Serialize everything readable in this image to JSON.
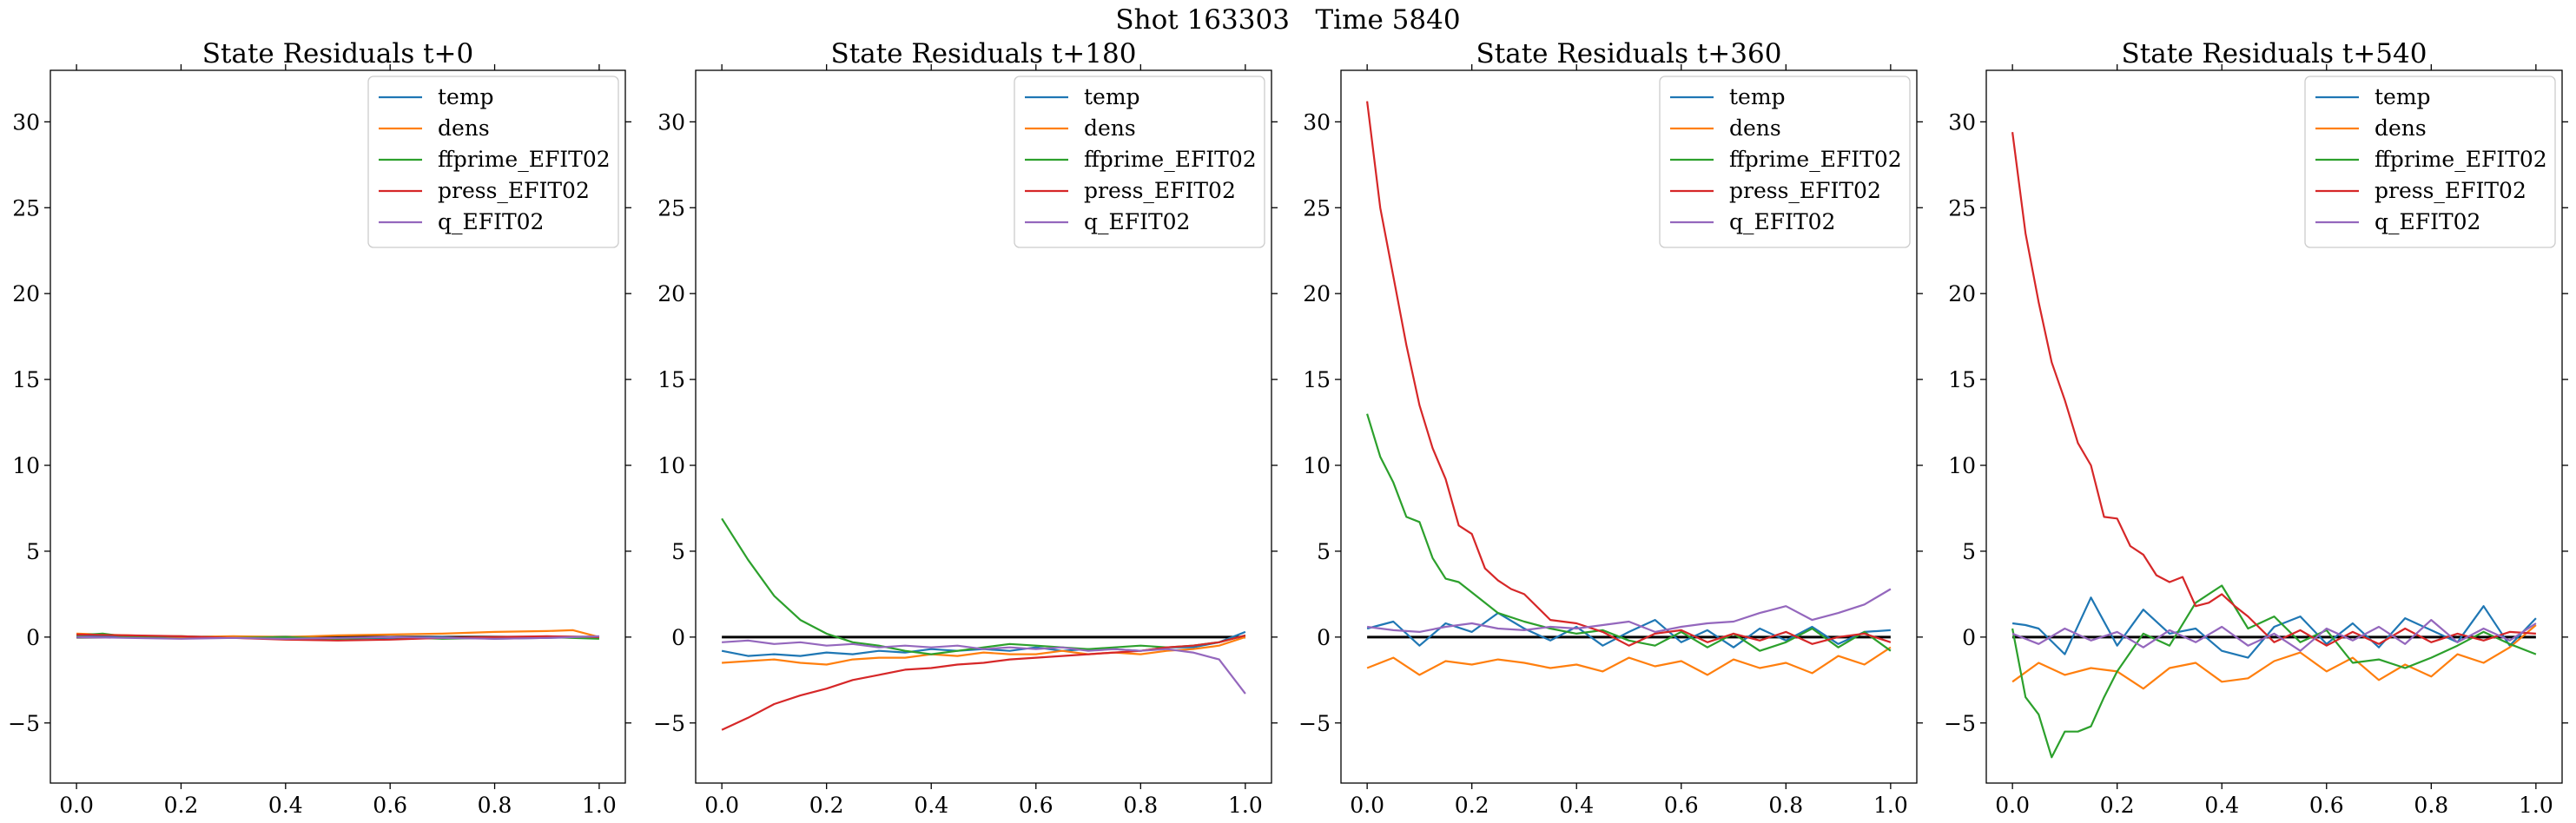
{
  "figure": {
    "suptitle": "Shot 163303   Time 5840"
  },
  "chart_data": [
    {
      "type": "line",
      "title": "State Residuals t+0",
      "xlim": [
        -0.05,
        1.05
      ],
      "ylim": [
        -8.5,
        33
      ],
      "xticks": [
        "0.0",
        "0.2",
        "0.4",
        "0.6",
        "0.8",
        "1.0"
      ],
      "yticks": [
        "−5",
        "0",
        "5",
        "10",
        "15",
        "20",
        "25",
        "30"
      ],
      "grid": false,
      "legend_position": "top-right",
      "reference_line_y": 0,
      "series": [
        {
          "name": "temp",
          "color": "#1f77b4",
          "x": [
            0.0,
            0.1,
            0.2,
            0.3,
            0.4,
            0.5,
            0.6,
            0.7,
            0.8,
            0.9,
            1.0
          ],
          "y": [
            0.1,
            0.05,
            0.0,
            0.0,
            -0.05,
            -0.1,
            -0.05,
            0.0,
            -0.1,
            -0.05,
            0.0
          ]
        },
        {
          "name": "dens",
          "color": "#ff7f0e",
          "x": [
            0.0,
            0.1,
            0.2,
            0.3,
            0.4,
            0.5,
            0.6,
            0.7,
            0.8,
            0.9,
            0.95,
            1.0
          ],
          "y": [
            0.2,
            0.1,
            0.0,
            0.05,
            0.0,
            0.1,
            0.15,
            0.2,
            0.3,
            0.35,
            0.4,
            0.0
          ]
        },
        {
          "name": "ffprime_EFIT02",
          "color": "#2ca02c",
          "x": [
            0.0,
            0.05,
            0.1,
            0.2,
            0.3,
            0.4,
            0.5,
            0.6,
            0.7,
            0.8,
            0.9,
            1.0
          ],
          "y": [
            0.1,
            0.2,
            0.0,
            0.05,
            -0.05,
            0.0,
            -0.1,
            0.0,
            -0.1,
            -0.05,
            0.0,
            -0.1
          ]
        },
        {
          "name": "press_EFIT02",
          "color": "#d62728",
          "x": [
            0.0,
            0.1,
            0.2,
            0.3,
            0.4,
            0.5,
            0.6,
            0.7,
            0.8,
            0.9,
            1.0
          ],
          "y": [
            0.15,
            0.1,
            0.05,
            -0.05,
            -0.15,
            -0.2,
            -0.15,
            -0.05,
            0.0,
            0.05,
            0.0
          ]
        },
        {
          "name": "q_EFIT02",
          "color": "#9467bd",
          "x": [
            0.0,
            0.1,
            0.2,
            0.3,
            0.4,
            0.5,
            0.6,
            0.7,
            0.8,
            0.9,
            1.0
          ],
          "y": [
            0.0,
            -0.05,
            -0.1,
            -0.05,
            -0.1,
            -0.05,
            0.0,
            -0.05,
            -0.1,
            -0.05,
            0.05
          ]
        }
      ]
    },
    {
      "type": "line",
      "title": "State Residuals t+180",
      "xlim": [
        -0.05,
        1.05
      ],
      "ylim": [
        -8.5,
        33
      ],
      "xticks": [
        "0.0",
        "0.2",
        "0.4",
        "0.6",
        "0.8",
        "1.0"
      ],
      "yticks": [
        "−5",
        "0",
        "5",
        "10",
        "15",
        "20",
        "25",
        "30"
      ],
      "grid": false,
      "legend_position": "top-right",
      "reference_line_y": 0,
      "series": [
        {
          "name": "temp",
          "color": "#1f77b4",
          "x": [
            0.0,
            0.05,
            0.1,
            0.15,
            0.2,
            0.25,
            0.3,
            0.35,
            0.4,
            0.45,
            0.5,
            0.55,
            0.6,
            0.65,
            0.7,
            0.75,
            0.8,
            0.85,
            0.9,
            0.95,
            1.0
          ],
          "y": [
            -0.8,
            -1.1,
            -1.0,
            -1.1,
            -0.9,
            -1.0,
            -0.8,
            -0.9,
            -0.7,
            -0.8,
            -0.7,
            -0.8,
            -0.6,
            -0.8,
            -0.7,
            -0.7,
            -0.8,
            -0.6,
            -0.6,
            -0.3,
            0.3
          ]
        },
        {
          "name": "dens",
          "color": "#ff7f0e",
          "x": [
            0.0,
            0.05,
            0.1,
            0.15,
            0.2,
            0.25,
            0.3,
            0.35,
            0.4,
            0.45,
            0.5,
            0.55,
            0.6,
            0.65,
            0.7,
            0.75,
            0.8,
            0.85,
            0.9,
            0.95,
            1.0
          ],
          "y": [
            -1.5,
            -1.4,
            -1.3,
            -1.5,
            -1.6,
            -1.3,
            -1.2,
            -1.2,
            -1.0,
            -1.1,
            -0.9,
            -1.0,
            -1.0,
            -0.8,
            -1.0,
            -0.9,
            -1.0,
            -0.8,
            -0.7,
            -0.5,
            0.0
          ]
        },
        {
          "name": "ffprime_EFIT02",
          "color": "#2ca02c",
          "x": [
            0.0,
            0.05,
            0.1,
            0.15,
            0.2,
            0.25,
            0.3,
            0.35,
            0.4,
            0.45,
            0.5,
            0.55,
            0.6,
            0.65,
            0.7,
            0.75,
            0.8,
            0.85,
            0.9,
            0.95,
            1.0
          ],
          "y": [
            6.9,
            4.5,
            2.4,
            1.0,
            0.2,
            -0.3,
            -0.5,
            -0.8,
            -1.0,
            -0.8,
            -0.6,
            -0.4,
            -0.5,
            -0.6,
            -0.7,
            -0.6,
            -0.5,
            -0.6,
            -0.5,
            -0.3,
            0.1
          ]
        },
        {
          "name": "press_EFIT02",
          "color": "#d62728",
          "x": [
            0.0,
            0.05,
            0.1,
            0.15,
            0.2,
            0.25,
            0.3,
            0.35,
            0.4,
            0.45,
            0.5,
            0.55,
            0.6,
            0.65,
            0.7,
            0.75,
            0.8,
            0.85,
            0.9,
            0.95,
            1.0
          ],
          "y": [
            -5.4,
            -4.7,
            -3.9,
            -3.4,
            -3.0,
            -2.5,
            -2.2,
            -1.9,
            -1.8,
            -1.6,
            -1.5,
            -1.3,
            -1.2,
            -1.1,
            -1.0,
            -0.9,
            -0.8,
            -0.6,
            -0.5,
            -0.3,
            0.1
          ]
        },
        {
          "name": "q_EFIT02",
          "color": "#9467bd",
          "x": [
            0.0,
            0.05,
            0.1,
            0.15,
            0.2,
            0.25,
            0.3,
            0.35,
            0.4,
            0.45,
            0.5,
            0.55,
            0.6,
            0.65,
            0.7,
            0.75,
            0.8,
            0.85,
            0.9,
            0.95,
            1.0
          ],
          "y": [
            -0.3,
            -0.2,
            -0.4,
            -0.3,
            -0.5,
            -0.4,
            -0.6,
            -0.5,
            -0.6,
            -0.5,
            -0.7,
            -0.6,
            -0.7,
            -0.6,
            -0.8,
            -0.7,
            -0.8,
            -0.7,
            -0.9,
            -1.3,
            -3.3
          ]
        }
      ]
    },
    {
      "type": "line",
      "title": "State Residuals t+360",
      "xlim": [
        -0.05,
        1.05
      ],
      "ylim": [
        -8.5,
        33
      ],
      "xticks": [
        "0.0",
        "0.2",
        "0.4",
        "0.6",
        "0.8",
        "1.0"
      ],
      "yticks": [
        "−5",
        "0",
        "5",
        "10",
        "15",
        "20",
        "25",
        "30"
      ],
      "grid": false,
      "legend_position": "top-right",
      "reference_line_y": 0,
      "series": [
        {
          "name": "temp",
          "color": "#1f77b4",
          "x": [
            0.0,
            0.05,
            0.1,
            0.15,
            0.2,
            0.25,
            0.3,
            0.35,
            0.4,
            0.45,
            0.5,
            0.55,
            0.6,
            0.65,
            0.7,
            0.75,
            0.8,
            0.85,
            0.9,
            0.95,
            1.0
          ],
          "y": [
            0.5,
            0.9,
            -0.5,
            0.8,
            0.3,
            1.4,
            0.5,
            -0.2,
            0.6,
            -0.5,
            0.3,
            1.0,
            -0.3,
            0.4,
            -0.6,
            0.5,
            -0.2,
            0.6,
            -0.4,
            0.3,
            0.4
          ]
        },
        {
          "name": "dens",
          "color": "#ff7f0e",
          "x": [
            0.0,
            0.05,
            0.1,
            0.15,
            0.2,
            0.25,
            0.3,
            0.35,
            0.4,
            0.45,
            0.5,
            0.55,
            0.6,
            0.65,
            0.7,
            0.75,
            0.8,
            0.85,
            0.9,
            0.95,
            1.0
          ],
          "y": [
            -1.8,
            -1.2,
            -2.2,
            -1.4,
            -1.6,
            -1.3,
            -1.5,
            -1.8,
            -1.6,
            -2.0,
            -1.2,
            -1.7,
            -1.4,
            -2.2,
            -1.3,
            -1.8,
            -1.5,
            -2.1,
            -1.1,
            -1.6,
            -0.6
          ]
        },
        {
          "name": "ffprime_EFIT02",
          "color": "#2ca02c",
          "x": [
            0.0,
            0.025,
            0.05,
            0.075,
            0.1,
            0.125,
            0.15,
            0.175,
            0.2,
            0.25,
            0.3,
            0.35,
            0.4,
            0.45,
            0.5,
            0.55,
            0.6,
            0.65,
            0.7,
            0.75,
            0.8,
            0.85,
            0.9,
            0.95,
            1.0
          ],
          "y": [
            13.0,
            10.5,
            9.0,
            7.0,
            6.7,
            4.6,
            3.4,
            3.2,
            2.6,
            1.4,
            0.9,
            0.5,
            0.2,
            0.4,
            -0.2,
            -0.5,
            0.3,
            -0.6,
            0.2,
            -0.8,
            -0.3,
            0.5,
            -0.6,
            0.3,
            -0.8
          ]
        },
        {
          "name": "press_EFIT02",
          "color": "#d62728",
          "x": [
            0.0,
            0.025,
            0.05,
            0.075,
            0.1,
            0.125,
            0.15,
            0.175,
            0.2,
            0.225,
            0.25,
            0.275,
            0.3,
            0.35,
            0.4,
            0.45,
            0.5,
            0.55,
            0.6,
            0.65,
            0.7,
            0.75,
            0.8,
            0.85,
            0.9,
            0.95,
            1.0
          ],
          "y": [
            31.2,
            25.0,
            21.0,
            17.0,
            13.5,
            11.0,
            9.2,
            6.5,
            6.0,
            4.0,
            3.3,
            2.8,
            2.5,
            1.0,
            0.8,
            0.3,
            -0.5,
            0.2,
            0.4,
            -0.3,
            0.2,
            -0.2,
            0.3,
            -0.4,
            0.0,
            0.2,
            -0.3
          ]
        },
        {
          "name": "q_EFIT02",
          "color": "#9467bd",
          "x": [
            0.0,
            0.05,
            0.1,
            0.15,
            0.2,
            0.25,
            0.3,
            0.35,
            0.4,
            0.45,
            0.5,
            0.55,
            0.6,
            0.65,
            0.7,
            0.75,
            0.8,
            0.85,
            0.9,
            0.95,
            1.0
          ],
          "y": [
            0.6,
            0.4,
            0.3,
            0.6,
            0.8,
            0.5,
            0.4,
            0.6,
            0.5,
            0.7,
            0.9,
            0.3,
            0.6,
            0.8,
            0.9,
            1.4,
            1.8,
            1.0,
            1.4,
            1.9,
            2.8
          ]
        }
      ]
    },
    {
      "type": "line",
      "title": "State Residuals t+540",
      "xlim": [
        -0.05,
        1.05
      ],
      "ylim": [
        -8.5,
        33
      ],
      "xticks": [
        "0.0",
        "0.2",
        "0.4",
        "0.6",
        "0.8",
        "1.0"
      ],
      "yticks": [
        "−5",
        "0",
        "5",
        "10",
        "15",
        "20",
        "25",
        "30"
      ],
      "grid": false,
      "legend_position": "top-right",
      "reference_line_y": 0,
      "series": [
        {
          "name": "temp",
          "color": "#1f77b4",
          "x": [
            0.0,
            0.025,
            0.05,
            0.1,
            0.15,
            0.2,
            0.25,
            0.3,
            0.35,
            0.4,
            0.45,
            0.5,
            0.55,
            0.6,
            0.65,
            0.7,
            0.75,
            0.8,
            0.85,
            0.9,
            0.95,
            1.0
          ],
          "y": [
            0.8,
            0.7,
            0.5,
            -1.0,
            2.3,
            -0.5,
            1.6,
            0.2,
            0.5,
            -0.8,
            -1.2,
            0.6,
            1.2,
            -0.4,
            0.8,
            -0.6,
            1.1,
            0.4,
            -0.3,
            1.8,
            -0.5,
            1.1
          ]
        },
        {
          "name": "dens",
          "color": "#ff7f0e",
          "x": [
            0.0,
            0.05,
            0.1,
            0.15,
            0.2,
            0.25,
            0.3,
            0.35,
            0.4,
            0.45,
            0.5,
            0.55,
            0.6,
            0.65,
            0.7,
            0.75,
            0.8,
            0.85,
            0.9,
            0.95,
            1.0
          ],
          "y": [
            -2.6,
            -1.5,
            -2.2,
            -1.8,
            -2.0,
            -3.0,
            -1.8,
            -1.5,
            -2.6,
            -2.4,
            -1.4,
            -0.9,
            -2.0,
            -1.2,
            -2.5,
            -1.6,
            -2.3,
            -1.0,
            -1.5,
            -0.6,
            0.7
          ]
        },
        {
          "name": "ffprime_EFIT02",
          "color": "#2ca02c",
          "x": [
            0.0,
            0.025,
            0.05,
            0.075,
            0.1,
            0.125,
            0.15,
            0.175,
            0.2,
            0.25,
            0.3,
            0.35,
            0.4,
            0.45,
            0.5,
            0.55,
            0.6,
            0.65,
            0.7,
            0.75,
            0.8,
            0.85,
            0.9,
            0.95,
            1.0
          ],
          "y": [
            0.5,
            -3.5,
            -4.5,
            -7.0,
            -5.5,
            -5.5,
            -5.2,
            -3.5,
            -2.0,
            0.2,
            -0.5,
            2.0,
            3.0,
            0.5,
            1.2,
            -0.3,
            0.4,
            -1.5,
            -1.3,
            -1.8,
            -1.2,
            -0.5,
            0.3,
            -0.4,
            -1.0
          ]
        },
        {
          "name": "press_EFIT02",
          "color": "#d62728",
          "x": [
            0.0,
            0.025,
            0.05,
            0.075,
            0.1,
            0.125,
            0.15,
            0.175,
            0.2,
            0.225,
            0.25,
            0.275,
            0.3,
            0.325,
            0.35,
            0.375,
            0.4,
            0.425,
            0.45,
            0.5,
            0.55,
            0.6,
            0.65,
            0.7,
            0.75,
            0.8,
            0.85,
            0.9,
            0.95,
            1.0
          ],
          "y": [
            29.4,
            23.5,
            19.5,
            16.0,
            13.8,
            11.3,
            10.0,
            7.0,
            6.9,
            5.3,
            4.8,
            3.6,
            3.2,
            3.5,
            1.8,
            2.0,
            2.5,
            1.8,
            1.2,
            -0.3,
            0.4,
            -0.5,
            0.3,
            -0.4,
            0.5,
            -0.3,
            0.2,
            -0.2,
            0.3,
            0.2
          ]
        },
        {
          "name": "q_EFIT02",
          "color": "#9467bd",
          "x": [
            0.0,
            0.05,
            0.1,
            0.15,
            0.2,
            0.25,
            0.3,
            0.35,
            0.4,
            0.45,
            0.5,
            0.55,
            0.6,
            0.65,
            0.7,
            0.75,
            0.8,
            0.85,
            0.9,
            0.95,
            1.0
          ],
          "y": [
            0.2,
            -0.4,
            0.5,
            -0.2,
            0.3,
            -0.6,
            0.4,
            -0.3,
            0.6,
            -0.5,
            0.2,
            -0.8,
            0.5,
            -0.2,
            0.6,
            -0.4,
            1.0,
            -0.3,
            0.5,
            -0.2,
            0.8
          ]
        }
      ]
    }
  ]
}
